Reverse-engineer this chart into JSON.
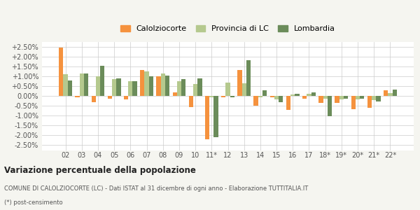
{
  "years": [
    "02",
    "03",
    "04",
    "05",
    "06",
    "07",
    "08",
    "09",
    "10",
    "11*",
    "12",
    "13",
    "14",
    "15",
    "16",
    "17",
    "18*",
    "19*",
    "20*",
    "21*",
    "22*"
  ],
  "calolziocorte": [
    2.45,
    -0.05,
    -0.3,
    -0.12,
    -0.18,
    1.32,
    1.0,
    0.18,
    -0.55,
    -2.2,
    -0.05,
    1.32,
    -0.48,
    -0.05,
    -0.72,
    -0.12,
    -0.35,
    -0.35,
    -0.68,
    -0.58,
    0.3
  ],
  "provincia_lc": [
    1.1,
    1.15,
    1.02,
    0.85,
    0.75,
    1.25,
    1.15,
    0.75,
    0.6,
    -0.05,
    0.68,
    0.65,
    -0.08,
    -0.18,
    0.08,
    0.12,
    -0.15,
    -0.18,
    -0.18,
    -0.22,
    0.15
  ],
  "lombardia": [
    0.8,
    1.15,
    1.55,
    0.9,
    0.75,
    1.0,
    1.05,
    0.85,
    0.9,
    -2.1,
    -0.08,
    1.82,
    0.28,
    -0.32,
    0.1,
    0.18,
    -1.02,
    -0.12,
    -0.12,
    -0.28,
    0.32
  ],
  "color_calolziocorte": "#f5923e",
  "color_provincia": "#b5c98e",
  "color_lombardia": "#6b8c5a",
  "title": "Variazione percentuale della popolazione",
  "subtitle": "COMUNE DI CALOLZIOCORTE (LC) - Dati ISTAT al 31 dicembre di ogni anno - Elaborazione TUTTITALIA.IT",
  "footnote": "(*) post-censimento",
  "bg_color": "#f5f5f0",
  "plot_bg": "#ffffff",
  "ylim_min": -2.75,
  "ylim_max": 2.75,
  "yticks": [
    -2.5,
    -2.0,
    -1.5,
    -1.0,
    -0.5,
    0.0,
    0.5,
    1.0,
    1.5,
    2.0,
    2.5
  ]
}
